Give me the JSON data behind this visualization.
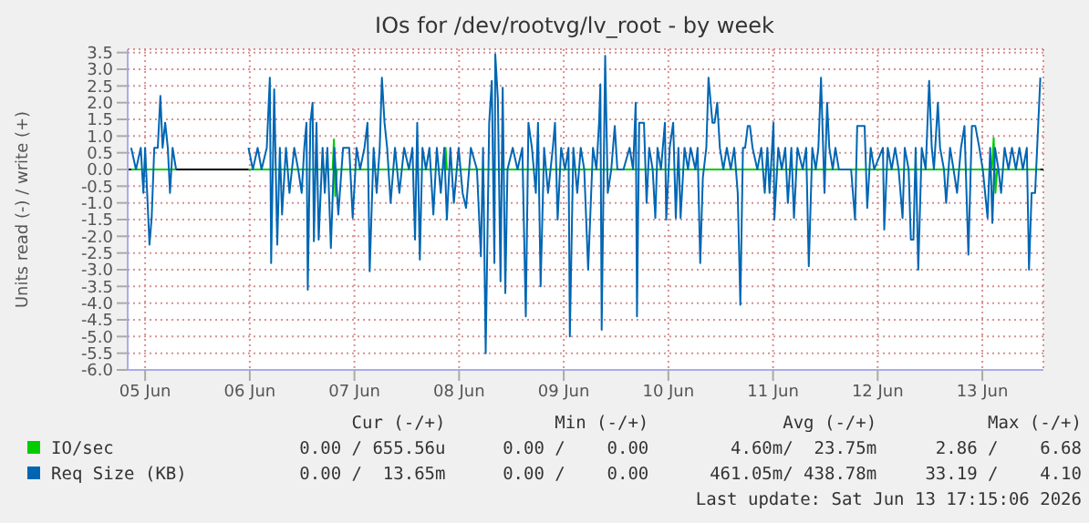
{
  "chart_data": {
    "type": "line",
    "title": "IOs for /dev/rootvg/lv_root - by week",
    "ylabel": "Units read (-) / write (+)",
    "xlim": [
      "2026-06-04T20:00",
      "2026-06-13T14:00"
    ],
    "xticks": [
      {
        "value": "2026-06-05",
        "label": "05 Jun"
      },
      {
        "value": "2026-06-06",
        "label": "06 Jun"
      },
      {
        "value": "2026-06-07",
        "label": "07 Jun"
      },
      {
        "value": "2026-06-08",
        "label": "08 Jun"
      },
      {
        "value": "2026-06-09",
        "label": "09 Jun"
      },
      {
        "value": "2026-06-10",
        "label": "10 Jun"
      },
      {
        "value": "2026-06-11",
        "label": "11 Jun"
      },
      {
        "value": "2026-06-12",
        "label": "12 Jun"
      },
      {
        "value": "2026-06-13",
        "label": "13 Jun"
      }
    ],
    "ylim": [
      -6,
      3.6
    ],
    "yticks": [
      {
        "value": -6,
        "label": "-6.0"
      },
      -5.5,
      {
        "value": -5,
        "label": "-5.0"
      },
      -4.5,
      {
        "value": -4,
        "label": "-4.0"
      },
      -3.5,
      {
        "value": -3,
        "label": "-3.0"
      },
      -2.5,
      {
        "value": -2,
        "label": "-2.0"
      },
      -1.5,
      {
        "value": -1,
        "label": "-1.0"
      },
      -0.5,
      {
        "value": 0,
        "label": "0.0"
      },
      0.5,
      {
        "value": 1,
        "label": "1.0"
      },
      1.5,
      {
        "value": 2,
        "label": "2.0"
      },
      2.5,
      {
        "value": 3,
        "label": "3.0"
      },
      3.5
    ],
    "grid": true,
    "legend": "bottom",
    "marker": "none",
    "ref_lines": [
      {
        "axis": "y",
        "value": 0,
        "color": "#000000"
      }
    ],
    "series": [
      {
        "name": "IO/sec",
        "color": "#00cc00",
        "x": [
          "2026-06-04T20:48",
          "2026-06-05T07:06",
          "2026-06-05T15:00",
          "2026-06-05T23:42",
          "2026-06-06T19:00",
          "2026-06-06T19:18",
          "2026-06-06T19:36",
          "2026-06-06T20:00",
          "2026-06-07T20:36",
          "2026-06-07T20:54",
          "2026-06-07T21:12",
          "2026-06-13T02:12",
          "2026-06-13T02:36",
          "2026-06-13T03:00",
          "2026-06-13T03:24",
          "2026-06-13T13:18"
        ],
        "values": [
          0,
          0,
          null,
          0,
          0,
          0.9,
          -0.8,
          0,
          0,
          0.65,
          0,
          0,
          0.95,
          -0.7,
          0,
          0
        ]
      },
      {
        "name": "Req Size (KB)",
        "color": "#0066b3",
        "x": [
          "2026-06-04T20:48",
          "2026-06-04T21:54",
          "2026-06-04T23:00",
          "2026-06-04T23:36",
          "2026-06-05T00:00",
          "2026-06-05T01:00",
          "2026-06-05T01:30",
          "2026-06-05T02:06",
          "2026-06-05T02:54",
          "2026-06-05T03:30",
          "2026-06-05T04:00",
          "2026-06-05T04:36",
          "2026-06-05T05:12",
          "2026-06-05T05:42",
          "2026-06-05T06:18",
          "2026-06-05T07:06",
          "2026-06-05T15:00",
          "2026-06-05T23:42",
          "2026-06-06T00:42",
          "2026-06-06T01:48",
          "2026-06-06T02:42",
          "2026-06-06T03:54",
          "2026-06-06T04:36",
          "2026-06-06T04:54",
          "2026-06-06T05:36",
          "2026-06-06T06:18",
          "2026-06-06T06:54",
          "2026-06-06T07:24",
          "2026-06-06T08:18",
          "2026-06-06T09:06",
          "2026-06-06T10:12",
          "2026-06-06T11:06",
          "2026-06-06T11:54",
          "2026-06-06T12:30",
          "2026-06-06T13:00",
          "2026-06-06T13:18",
          "2026-06-06T13:54",
          "2026-06-06T14:24",
          "2026-06-06T14:42",
          "2026-06-06T15:18",
          "2026-06-06T15:48",
          "2026-06-06T16:42",
          "2026-06-06T17:12",
          "2026-06-06T17:48",
          "2026-06-06T18:36",
          "2026-06-06T19:24",
          "2026-06-06T20:18",
          "2026-06-06T21:24",
          "2026-06-06T22:48",
          "2026-06-06T23:36",
          "2026-06-07T00:30",
          "2026-06-07T01:18",
          "2026-06-07T02:18",
          "2026-06-07T03:00",
          "2026-06-07T03:30",
          "2026-06-07T04:24",
          "2026-06-07T05:06",
          "2026-06-07T05:48",
          "2026-06-07T06:18",
          "2026-06-07T06:54",
          "2026-06-07T07:30",
          "2026-06-07T08:18",
          "2026-06-07T09:18",
          "2026-06-07T10:18",
          "2026-06-07T11:24",
          "2026-06-07T12:30",
          "2026-06-07T13:18",
          "2026-06-07T13:54",
          "2026-06-07T14:24",
          "2026-06-07T15:00",
          "2026-06-07T15:36",
          "2026-06-07T16:24",
          "2026-06-07T17:12",
          "2026-06-07T18:06",
          "2026-06-07T18:54",
          "2026-06-07T19:48",
          "2026-06-07T20:36",
          "2026-06-07T21:12",
          "2026-06-07T22:00",
          "2026-06-07T22:48",
          "2026-06-07T23:54",
          "2026-06-08T00:48",
          "2026-06-08T01:36",
          "2026-06-08T02:42",
          "2026-06-08T04:06",
          "2026-06-08T05:00",
          "2026-06-08T05:30",
          "2026-06-08T06:06",
          "2026-06-08T06:54",
          "2026-06-08T07:30",
          "2026-06-08T08:06",
          "2026-06-08T08:18",
          "2026-06-08T08:54",
          "2026-06-08T09:30",
          "2026-06-08T10:00",
          "2026-06-08T10:36",
          "2026-06-08T11:06",
          "2026-06-08T12:18",
          "2026-06-08T13:24",
          "2026-06-08T14:30",
          "2026-06-08T15:18",
          "2026-06-08T15:54",
          "2026-06-08T16:42",
          "2026-06-08T17:36",
          "2026-06-08T18:06",
          "2026-06-08T18:42",
          "2026-06-08T19:30",
          "2026-06-08T20:24",
          "2026-06-08T21:30",
          "2026-06-08T22:00",
          "2026-06-08T22:36",
          "2026-06-08T23:24",
          "2026-06-09T00:18",
          "2026-06-09T01:06",
          "2026-06-09T01:24",
          "2026-06-09T02:12",
          "2026-06-09T03:06",
          "2026-06-09T03:54",
          "2026-06-09T04:42",
          "2026-06-09T05:36",
          "2026-06-09T06:42",
          "2026-06-09T07:30",
          "2026-06-09T08:06",
          "2026-06-09T08:24",
          "2026-06-09T08:42",
          "2026-06-09T09:30",
          "2026-06-09T10:06",
          "2026-06-09T10:54",
          "2026-06-09T11:42",
          "2026-06-09T12:18",
          "2026-06-09T13:42",
          "2026-06-09T15:06",
          "2026-06-09T15:54",
          "2026-06-09T16:30",
          "2026-06-09T16:48",
          "2026-06-09T17:18",
          "2026-06-09T18:24",
          "2026-06-09T19:00",
          "2026-06-09T19:36",
          "2026-06-09T20:24",
          "2026-06-09T21:00",
          "2026-06-09T21:30",
          "2026-06-09T22:18",
          "2026-06-09T23:12",
          "2026-06-09T23:30",
          "2026-06-10T00:18",
          "2026-06-10T01:06",
          "2026-06-10T01:42",
          "2026-06-10T02:18",
          "2026-06-10T02:48",
          "2026-06-10T03:42",
          "2026-06-10T04:30",
          "2026-06-10T05:06",
          "2026-06-10T06:12",
          "2026-06-10T06:42",
          "2026-06-10T07:18",
          "2026-06-10T07:54",
          "2026-06-10T08:42",
          "2026-06-10T09:12",
          "2026-06-10T10:06",
          "2026-06-10T10:36",
          "2026-06-10T11:12",
          "2026-06-10T11:48",
          "2026-06-10T12:36",
          "2026-06-10T13:24",
          "2026-06-10T14:18",
          "2026-06-10T15:06",
          "2026-06-10T15:54",
          "2026-06-10T16:30",
          "2026-06-10T17:06",
          "2026-06-10T17:36",
          "2026-06-10T18:12",
          "2026-06-10T18:42",
          "2026-06-10T19:18",
          "2026-06-10T20:24",
          "2026-06-10T21:18",
          "2026-06-10T22:06",
          "2026-06-10T22:42",
          "2026-06-10T23:12",
          "2026-06-11T00:06",
          "2026-06-11T00:18",
          "2026-06-11T01:12",
          "2026-06-11T02:00",
          "2026-06-11T02:48",
          "2026-06-11T03:24",
          "2026-06-11T04:12",
          "2026-06-11T04:48",
          "2026-06-11T05:36",
          "2026-06-11T06:48",
          "2026-06-11T07:36",
          "2026-06-11T08:12",
          "2026-06-11T09:00",
          "2026-06-11T09:48",
          "2026-06-11T10:24",
          "2026-06-11T11:00",
          "2026-06-11T11:48",
          "2026-06-11T12:24",
          "2026-06-11T12:54",
          "2026-06-11T13:42",
          "2026-06-11T14:18",
          "2026-06-11T15:06",
          "2026-06-11T16:18",
          "2026-06-11T17:54",
          "2026-06-11T18:48",
          "2026-06-11T19:18",
          "2026-06-11T21:00",
          "2026-06-11T21:36",
          "2026-06-11T22:24",
          "2026-06-11T23:12",
          "2026-06-12T01:12",
          "2026-06-12T01:30",
          "2026-06-12T02:18",
          "2026-06-12T03:12",
          "2026-06-12T04:00",
          "2026-06-12T04:48",
          "2026-06-12T05:42",
          "2026-06-12T06:12",
          "2026-06-12T07:06",
          "2026-06-12T07:36",
          "2026-06-12T08:12",
          "2026-06-12T08:42",
          "2026-06-12T09:18",
          "2026-06-12T10:06",
          "2026-06-12T11:00",
          "2026-06-12T11:48",
          "2026-06-12T12:24",
          "2026-06-12T12:54",
          "2026-06-12T13:48",
          "2026-06-12T14:18",
          "2026-06-12T15:12",
          "2026-06-12T15:42",
          "2026-06-12T16:36",
          "2026-06-12T17:24",
          "2026-06-12T18:12",
          "2026-06-12T19:06",
          "2026-06-12T19:54",
          "2026-06-12T20:48",
          "2026-06-12T21:36",
          "2026-06-12T22:24",
          "2026-06-12T23:18",
          "2026-06-13T00:06",
          "2026-06-13T01:12",
          "2026-06-13T01:48",
          "2026-06-13T02:18",
          "2026-06-13T02:54",
          "2026-06-13T03:42",
          "2026-06-13T04:18",
          "2026-06-13T05:06",
          "2026-06-13T06:00",
          "2026-06-13T06:48",
          "2026-06-13T07:42",
          "2026-06-13T08:30",
          "2026-06-13T09:18",
          "2026-06-13T10:12",
          "2026-06-13T10:42",
          "2026-06-13T11:18",
          "2026-06-13T12:06",
          "2026-06-13T13:18"
        ],
        "values": [
          0.65,
          0,
          0.65,
          -0.7,
          0.65,
          -2.25,
          -1.45,
          0.65,
          0.65,
          2.2,
          0.65,
          1.4,
          0.65,
          -0.7,
          0.65,
          0,
          null,
          0.65,
          0,
          0.65,
          0,
          0.65,
          2.75,
          -2.8,
          2.4,
          -2.25,
          0.65,
          -1.35,
          0.65,
          -0.7,
          0.65,
          0,
          -0.7,
          0.65,
          1.4,
          -3.6,
          1.4,
          2.0,
          -2.15,
          1.4,
          -2.1,
          0.65,
          -0.7,
          0.65,
          -2.35,
          0.65,
          -1.35,
          0.65,
          0.65,
          -1.45,
          0.65,
          0,
          0.65,
          1.4,
          -3.05,
          0.65,
          -0.7,
          0.65,
          2.75,
          1.4,
          0.65,
          -1.0,
          0.65,
          -0.7,
          0.65,
          0,
          0.65,
          -2.1,
          1.4,
          -2.7,
          0.65,
          0,
          0.65,
          -1.35,
          0.65,
          -0.7,
          0.65,
          -1.5,
          0.65,
          -1.0,
          0.65,
          -0.7,
          -1.15,
          0.65,
          0,
          -2.6,
          0.65,
          -5.5,
          1.4,
          2.65,
          -2.8,
          3.45,
          2.1,
          -3.35,
          2.45,
          -3.7,
          0,
          0.65,
          0,
          0.65,
          -4.4,
          1.4,
          0.65,
          -0.7,
          1.4,
          -3.5,
          0.65,
          -0.7,
          0.65,
          1.4,
          -1.5,
          0.65,
          0,
          0.65,
          -5.0,
          0.65,
          -0.7,
          0.65,
          0,
          -3.0,
          0.65,
          0,
          1.4,
          2.55,
          -4.8,
          3.4,
          -0.7,
          0,
          1.3,
          0,
          0,
          0.65,
          0,
          2.0,
          -4.4,
          1.4,
          1.4,
          -1.0,
          0.65,
          0,
          -1.45,
          0.65,
          0,
          1.4,
          -1.5,
          0.65,
          1.4,
          -1.45,
          0.65,
          -1.45,
          0.65,
          0,
          0.65,
          0,
          0.65,
          -2.8,
          -0.25,
          0.65,
          2.75,
          1.4,
          1.4,
          2.0,
          0.65,
          0,
          0.65,
          0,
          0.65,
          -0.7,
          -4.05,
          0.65,
          0.65,
          1.3,
          1.3,
          0.65,
          0,
          0.65,
          -0.7,
          0.65,
          -0.7,
          1.4,
          -1.5,
          0.65,
          0,
          0.65,
          -1.0,
          0.65,
          -1.45,
          0.65,
          0,
          0.65,
          -2.9,
          0.65,
          0,
          0.65,
          2.75,
          -0.7,
          2.0,
          0.65,
          0,
          0.65,
          0,
          0,
          0,
          -1.5,
          1.3,
          1.3,
          -1.15,
          0.65,
          0,
          0.65,
          -1.8,
          0.65,
          0,
          0.65,
          0,
          -1.45,
          0.65,
          0,
          -2.1,
          -2.1,
          0.65,
          -3.0,
          0.65,
          0,
          2.65,
          0.65,
          0,
          2.0,
          0.65,
          0,
          -1.0,
          0.65,
          0,
          -0.7,
          0.65,
          1.3,
          -2.55,
          1.3,
          1.3,
          0.65,
          0,
          -1.45,
          0.65,
          -1.6,
          0.65,
          0,
          -0.7,
          0.65,
          0,
          0.65,
          0,
          0.65,
          0,
          0.65,
          -3.0,
          -0.7,
          -0.7,
          2.75
        ]
      }
    ],
    "annotations": [
      "Cur (-/+)",
      "Min (-/+)",
      "Avg (-/+)",
      "Max (-/+)",
      "0.00 / 655.56u",
      "0.00 /    0.00",
      "4.60m/  23.75m",
      "2.86 /    6.68",
      "0.00 /  13.65m",
      "0.00 /    0.00",
      "461.05m/ 438.78m",
      "33.19 /    4.10",
      "Last update: Sat Jun 13 17:15:06 2026"
    ]
  }
}
